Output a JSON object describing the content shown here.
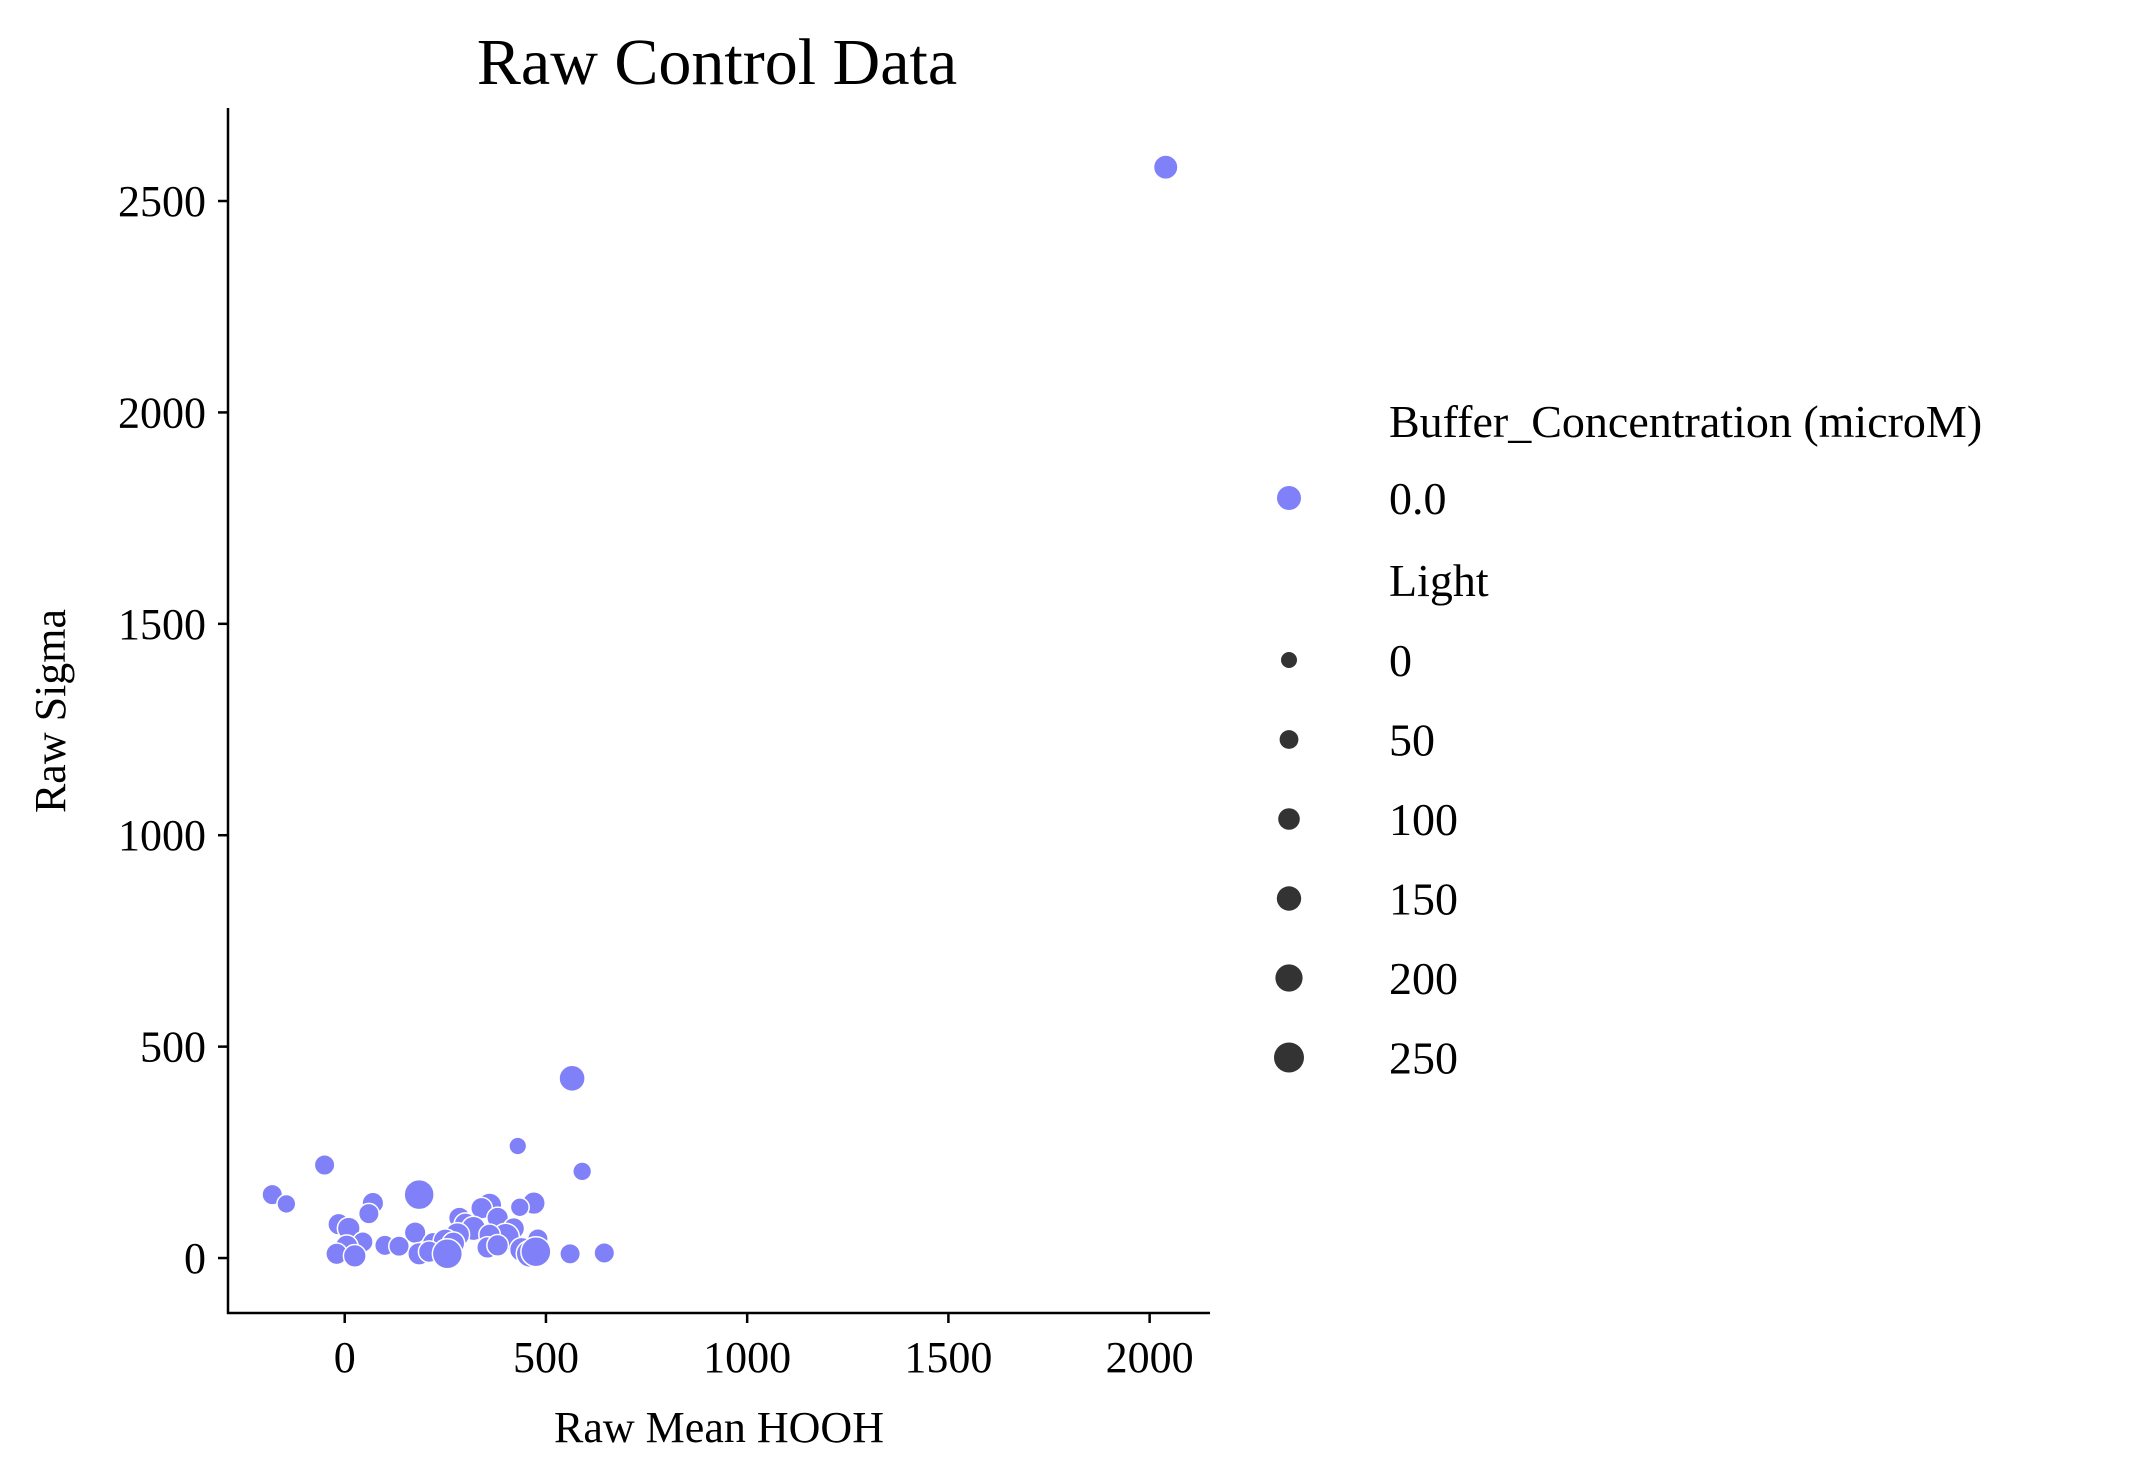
{
  "chart_data": {
    "type": "scatter",
    "title": "Raw Control Data",
    "xlabel": "Raw Mean HOOH",
    "ylabel": "Raw Sigma",
    "xlim": [
      -290,
      2150
    ],
    "ylim": [
      -130,
      2720
    ],
    "xticks": [
      0,
      500,
      1000,
      1500,
      2000
    ],
    "yticks": [
      0,
      500,
      1000,
      1500,
      2000,
      2500
    ],
    "grid": false,
    "legend_position": "right",
    "colors": {
      "point": "#8080f8",
      "point_edge": "#ffffff",
      "size_legend": "#333333",
      "axis": "#000000"
    },
    "legend": {
      "hue_title": "Buffer_Concentration (microM)",
      "hue_entries": [
        {
          "label": "0.0",
          "color": "#8080f8"
        }
      ],
      "size_title": "Light",
      "size_entries": [
        {
          "label": "0",
          "value": 0
        },
        {
          "label": "50",
          "value": 50
        },
        {
          "label": "100",
          "value": 100
        },
        {
          "label": "150",
          "value": 150
        },
        {
          "label": "200",
          "value": 200
        },
        {
          "label": "250",
          "value": 250
        }
      ]
    },
    "series": [
      {
        "name": "0.0",
        "points": [
          {
            "x": 2040,
            "y": 2580,
            "light": 150
          },
          {
            "x": 565,
            "y": 425,
            "light": 180
          },
          {
            "x": 430,
            "y": 265,
            "light": 30
          },
          {
            "x": 590,
            "y": 205,
            "light": 50
          },
          {
            "x": -50,
            "y": 220,
            "light": 80
          },
          {
            "x": -180,
            "y": 150,
            "light": 80
          },
          {
            "x": -145,
            "y": 128,
            "light": 50
          },
          {
            "x": 185,
            "y": 150,
            "light": 250
          },
          {
            "x": 70,
            "y": 130,
            "light": 100
          },
          {
            "x": 60,
            "y": 105,
            "light": 80
          },
          {
            "x": 470,
            "y": 130,
            "light": 120
          },
          {
            "x": 360,
            "y": 125,
            "light": 150
          },
          {
            "x": 340,
            "y": 118,
            "light": 100
          },
          {
            "x": 435,
            "y": 120,
            "light": 50
          },
          {
            "x": 285,
            "y": 95,
            "light": 100
          },
          {
            "x": 380,
            "y": 95,
            "light": 100
          },
          {
            "x": 300,
            "y": 80,
            "light": 120
          },
          {
            "x": 320,
            "y": 70,
            "light": 150
          },
          {
            "x": 420,
            "y": 70,
            "light": 100
          },
          {
            "x": -15,
            "y": 80,
            "light": 100
          },
          {
            "x": 10,
            "y": 70,
            "light": 120
          },
          {
            "x": 175,
            "y": 60,
            "light": 100
          },
          {
            "x": 280,
            "y": 55,
            "light": 150
          },
          {
            "x": 400,
            "y": 50,
            "light": 200
          },
          {
            "x": 360,
            "y": 55,
            "light": 100
          },
          {
            "x": 480,
            "y": 45,
            "light": 80
          },
          {
            "x": 45,
            "y": 38,
            "light": 80
          },
          {
            "x": 100,
            "y": 30,
            "light": 80
          },
          {
            "x": 135,
            "y": 28,
            "light": 80
          },
          {
            "x": 220,
            "y": 35,
            "light": 100
          },
          {
            "x": 250,
            "y": 40,
            "light": 150
          },
          {
            "x": 270,
            "y": 35,
            "light": 120
          },
          {
            "x": 355,
            "y": 25,
            "light": 100
          },
          {
            "x": 380,
            "y": 30,
            "light": 100
          },
          {
            "x": 5,
            "y": 28,
            "light": 120
          },
          {
            "x": -20,
            "y": 10,
            "light": 100
          },
          {
            "x": 25,
            "y": 5,
            "light": 120
          },
          {
            "x": 185,
            "y": 10,
            "light": 120
          },
          {
            "x": 210,
            "y": 15,
            "light": 100
          },
          {
            "x": 255,
            "y": 10,
            "light": 250
          },
          {
            "x": 440,
            "y": 20,
            "light": 150
          },
          {
            "x": 460,
            "y": 10,
            "light": 200
          },
          {
            "x": 475,
            "y": 15,
            "light": 250
          },
          {
            "x": 560,
            "y": 10,
            "light": 80
          },
          {
            "x": 645,
            "y": 12,
            "light": 80
          }
        ]
      }
    ]
  }
}
